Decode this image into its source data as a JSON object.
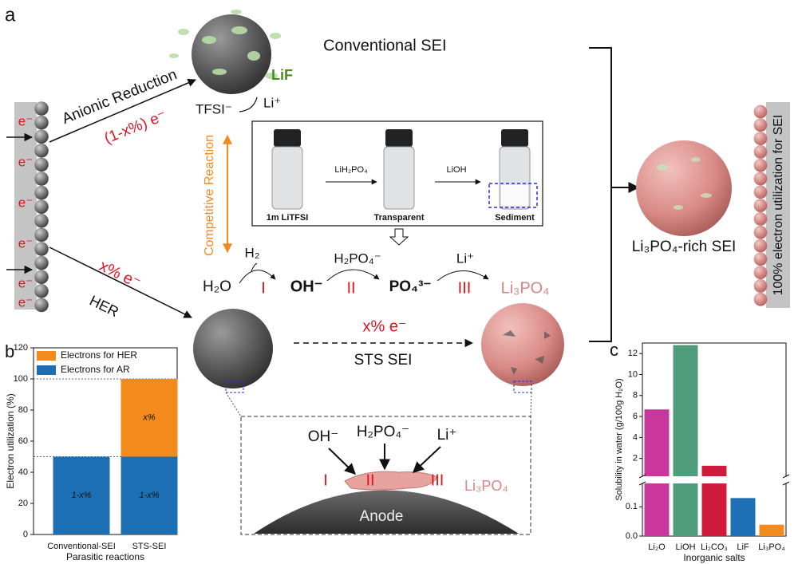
{
  "panel_labels": [
    "a",
    "b",
    "c"
  ],
  "diagram": {
    "conventional_sei": "Conventional SEI",
    "lif": "LiF",
    "tfsi": "TFSI⁻",
    "li_plus": "Li⁺",
    "anionic_reduction": "Anionic Reduction",
    "anionic_electrons": "(1-x%) e⁻",
    "electrode_electrons": [
      "e⁻",
      "e⁻",
      "e⁻",
      "e⁻",
      "e⁻",
      "e⁻"
    ],
    "competitive_reaction": "Competitive Reaction",
    "vials": {
      "labels": [
        "1m LiTFSI",
        "Transparent",
        "Sediment"
      ],
      "reagents": [
        "LiH₂PO₄",
        "LiOH"
      ]
    },
    "reaction": {
      "h2": "H₂",
      "h2o": "H₂O",
      "steps": [
        "I",
        "II",
        "III"
      ],
      "oh": "OH⁻",
      "h2po4": "H₂PO₄⁻",
      "po4": "PO₄³⁻",
      "li": "Li⁺",
      "product": "Li₃PO₄"
    },
    "her_electrons": "x% e⁻",
    "her": "HER",
    "sts_electrons": "x% e⁻",
    "sts_sei": "STS SEI",
    "rich_sei": "Li₃PO₄-rich SEI",
    "utilization": "100% electron utilization for SEI",
    "inset": {
      "species": [
        "OH⁻",
        "H₂PO₄⁻",
        "Li⁺"
      ],
      "steps": [
        "I",
        "II",
        "III"
      ],
      "product": "Li₃PO₄",
      "anode": "Anode"
    }
  },
  "chart_data": [
    {
      "type": "stacked_bar",
      "ylabel": "Electron utilization (%)",
      "xlabel": "Parasitic reactions",
      "categories": [
        "Conventional-SEI",
        "STS-SEI"
      ],
      "series": [
        {
          "name": "Electrons for AR",
          "color": "#1d6fb3",
          "values": [
            50,
            50
          ],
          "segment_labels": [
            "1-x%",
            "1-x%"
          ]
        },
        {
          "name": "Electrons for HER",
          "color": "#f28a1c",
          "values": [
            0,
            50
          ],
          "segment_labels": [
            null,
            "x%"
          ]
        }
      ],
      "reference_lines": [
        50,
        100
      ],
      "ylim": [
        0,
        120
      ],
      "yticks": [
        0,
        20,
        40,
        60,
        80,
        100,
        120
      ],
      "legend": "upper left"
    },
    {
      "type": "broken_bar",
      "ylabel": "Solubility in water (g/100g H₂O)",
      "xlabel": "Inorganic salts",
      "categories": [
        "Li₂O",
        "LiOH",
        "Li₂CO₃",
        "LiF",
        "Li₃PO₄"
      ],
      "values": [
        6.67,
        12.8,
        1.3,
        0.13,
        0.039
      ],
      "colors": [
        "#c8379b",
        "#4f9c7d",
        "#cf1c3d",
        "#1f6fb6",
        "#f28a1c"
      ],
      "ylim_lower": [
        0,
        0.18
      ],
      "yticks_lower": [
        {
          "value": 0,
          "label": "0.0"
        },
        0.1
      ],
      "ylim_upper": [
        0.3,
        13
      ],
      "yticks_upper": [
        2,
        4,
        6,
        8,
        10,
        12
      ]
    }
  ]
}
